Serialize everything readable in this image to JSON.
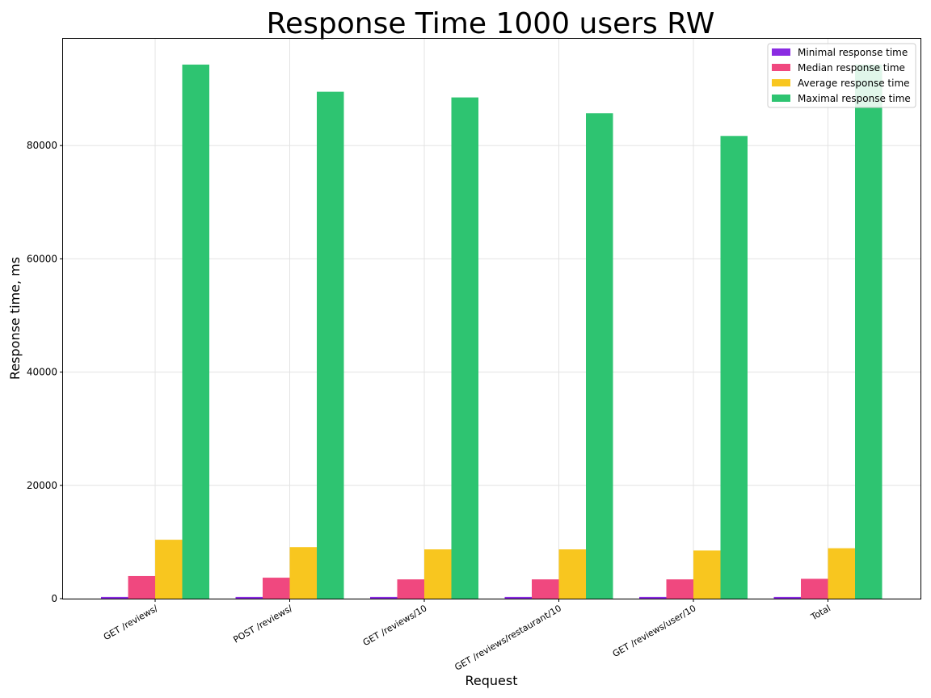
{
  "chart_data": {
    "type": "bar",
    "title": "Response Time 1000 users RW",
    "xlabel": "Request",
    "ylabel": "Response time, ms",
    "categories": [
      "GET /reviews/",
      "POST /reviews/",
      "GET /reviews/10",
      "GET /reviews/restaurant/10",
      "GET /reviews/user/10",
      "Total"
    ],
    "series": [
      {
        "name": "Minimal response time",
        "color": "#8a2be2",
        "values": [
          300,
          300,
          300,
          300,
          300,
          300
        ]
      },
      {
        "name": "Median response time",
        "color": "#f0487f",
        "values": [
          4000,
          3700,
          3400,
          3400,
          3400,
          3500
        ]
      },
      {
        "name": "Average response time",
        "color": "#f8c61f",
        "values": [
          10400,
          9100,
          8700,
          8700,
          8500,
          8900
        ]
      },
      {
        "name": "Maximal response time",
        "color": "#2ec471",
        "values": [
          94300,
          89500,
          88500,
          85700,
          81700,
          94300
        ]
      }
    ],
    "ylim": [
      0,
      99000
    ],
    "yticks": [
      0,
      20000,
      40000,
      60000,
      80000
    ],
    "grid": true,
    "legend": "top-right"
  }
}
